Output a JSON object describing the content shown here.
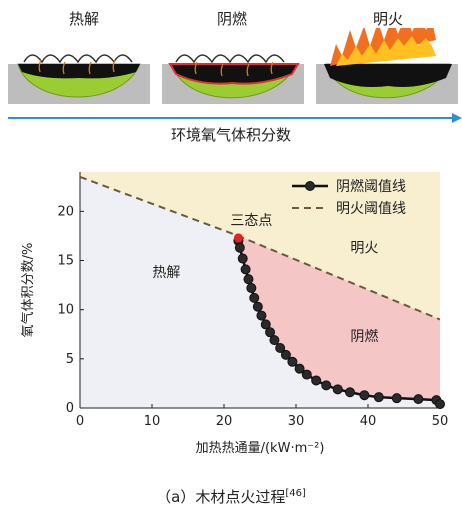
{
  "top_panels": {
    "labels": [
      "热解",
      "阴燃",
      "明火"
    ],
    "arrow_label": "环境氧气体积分数"
  },
  "chart_data": {
    "type": "line",
    "xlabel": "加热热通量/(kW·m⁻²)",
    "ylabel": "氧气体积分数/%",
    "xlim": [
      0,
      50
    ],
    "ylim": [
      0,
      24
    ],
    "x_ticks": [
      0,
      10,
      20,
      30,
      40,
      50
    ],
    "y_ticks": [
      0,
      5,
      10,
      15,
      20
    ],
    "legend_position": "top-right",
    "series": [
      {
        "name": "阴燃阈值线",
        "style": "solid-with-markers",
        "color": "#111111",
        "x": [
          22.0,
          22.2,
          22.6,
          23.0,
          23.4,
          23.8,
          24.2,
          24.7,
          25.2,
          25.8,
          26.4,
          27.0,
          27.8,
          28.6,
          29.5,
          30.5,
          31.5,
          32.8,
          34.2,
          35.8,
          37.5,
          39.5,
          41.5,
          44.0,
          47.0,
          49.5,
          50.0
        ],
        "y": [
          17.0,
          16.3,
          15.2,
          14.1,
          13.1,
          12.2,
          11.2,
          10.3,
          9.4,
          8.5,
          7.7,
          6.9,
          6.1,
          5.4,
          4.7,
          4.0,
          3.4,
          2.8,
          2.3,
          1.9,
          1.6,
          1.3,
          1.1,
          1.0,
          0.9,
          0.8,
          0.4
        ]
      },
      {
        "name": "明火阈值线",
        "style": "dashed",
        "color": "#6b5a3a",
        "x": [
          0,
          22.0,
          50
        ],
        "y": [
          23.5,
          17.5,
          9.0
        ]
      }
    ],
    "annotations": [
      {
        "text": "三态点",
        "x": 22.0,
        "y": 17.3
      }
    ],
    "regions": [
      {
        "label": "热解",
        "color": "#eef0f5"
      },
      {
        "label": "明火",
        "color": "#f7efcf"
      },
      {
        "label": "阴燃",
        "color": "#f5c6c6"
      }
    ]
  },
  "caption": {
    "text": "（a）木材点火过程",
    "ref": "[46]"
  }
}
